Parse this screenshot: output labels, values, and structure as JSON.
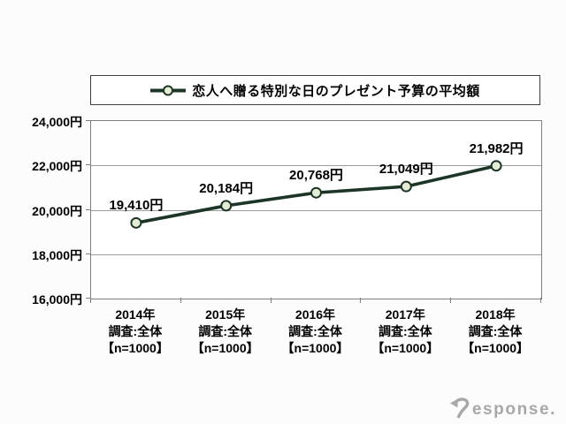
{
  "page": {
    "background": "#fcfcfc"
  },
  "watermark": {
    "text": "Response.",
    "color": "#a8a8a8"
  },
  "chart_data": {
    "type": "line",
    "title": "",
    "legend": "恋人へ贈る特別な日のプレゼント予算の平均額",
    "legend_position": "top",
    "categories": [
      "2014年",
      "2015年",
      "2016年",
      "2017年",
      "2018年"
    ],
    "category_sublines": [
      "調査:全体",
      "【n=1000】"
    ],
    "values": [
      19410,
      20184,
      20768,
      21049,
      21982
    ],
    "point_labels": [
      "19,410円",
      "20,184円",
      "20,768円",
      "21,049円",
      "21,982円"
    ],
    "ylim": [
      16000,
      24000
    ],
    "ytick_step": 2000,
    "y_tick_labels": [
      "24,000円",
      "22,000円",
      "20,000円",
      "18,000円",
      "16,000円"
    ],
    "grid": true,
    "colors": {
      "line": "#1c3527",
      "marker_fill": "#e4edd3",
      "marker_stroke": "#1c3527",
      "gridline": "#9c9c9c",
      "plot_border": "#7f7f7f",
      "legend_border": "#3f3f3f",
      "text": "#000000"
    }
  }
}
